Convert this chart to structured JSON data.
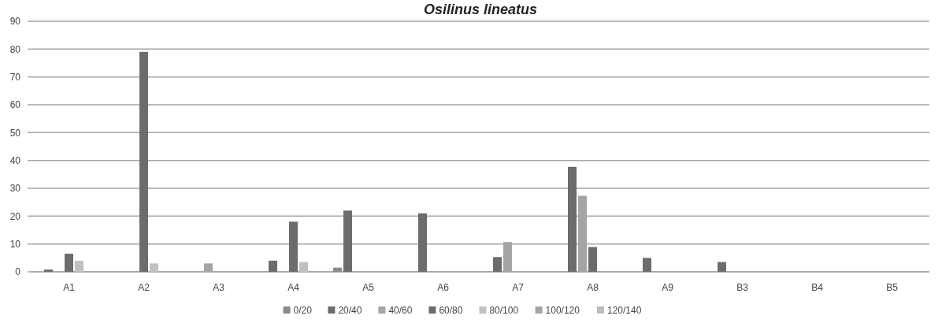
{
  "chart_data": {
    "type": "bar",
    "title": "Osilinus lineatus",
    "categories": [
      "A1",
      "A2",
      "A3",
      "A4",
      "A5",
      "A6",
      "A7",
      "A8",
      "A9",
      "B3",
      "B4",
      "B5"
    ],
    "series": [
      {
        "name": "0/20",
        "color": "#8b8b8d",
        "values": [
          0,
          0,
          0,
          0,
          1.5,
          0,
          0,
          0,
          0,
          0,
          0,
          0
        ]
      },
      {
        "name": "20/40",
        "color": "#6c6c6f",
        "values": [
          0.8,
          0,
          0,
          4,
          22,
          21,
          5.3,
          37.7,
          5,
          3.5,
          0,
          0
        ]
      },
      {
        "name": "40/60",
        "color": "#a5a5a7",
        "values": [
          0,
          0,
          3,
          0,
          0,
          0,
          10.7,
          27.3,
          0,
          0,
          0,
          0
        ]
      },
      {
        "name": "60/80",
        "color": "#6c6c6f",
        "values": [
          6.5,
          79,
          0,
          18,
          0,
          0,
          0,
          8.9,
          0,
          0,
          0,
          0
        ]
      },
      {
        "name": "80/100",
        "color": "#c1c1c3",
        "values": [
          4,
          3,
          0,
          3.5,
          0,
          0,
          0,
          0,
          0,
          0,
          0,
          0
        ]
      },
      {
        "name": "100/120",
        "color": "#a5a5a7",
        "values": [
          0,
          0,
          0,
          0,
          0,
          0,
          0,
          0,
          0,
          0,
          0,
          0
        ]
      },
      {
        "name": "120/140",
        "color": "#bcbcbe",
        "values": [
          0,
          0,
          0,
          0,
          0,
          0,
          0,
          0,
          0,
          0,
          0,
          0
        ]
      }
    ],
    "ylim": [
      0,
      90
    ],
    "yticks": [
      0,
      10,
      20,
      30,
      40,
      50,
      60,
      70,
      80,
      90
    ],
    "grid": "y",
    "legend": "bottom"
  }
}
